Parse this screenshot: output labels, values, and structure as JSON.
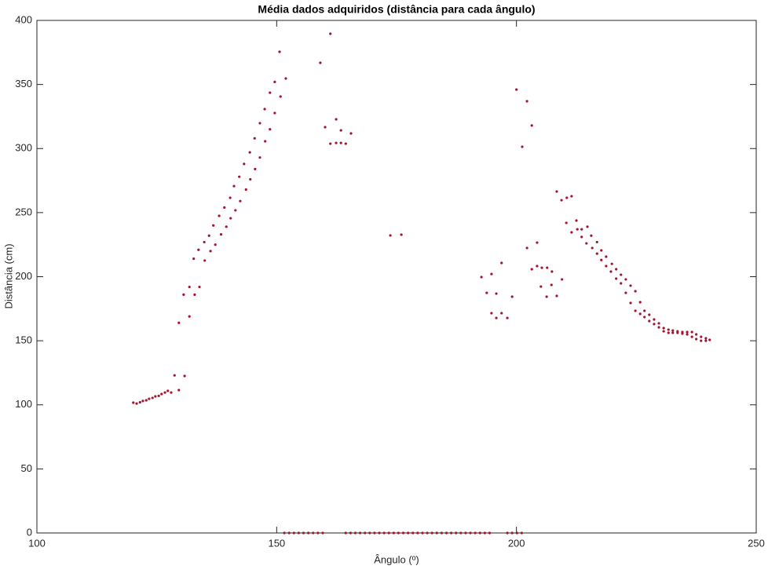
{
  "chart_data": {
    "type": "scatter",
    "title": "Média dados adquiridos (distância para cada ângulo)",
    "x_label": "Ângulo (º)",
    "y_label": "Distância (cm)",
    "color": "#a2142f",
    "xlim": [
      100,
      250
    ],
    "xticks": [
      100,
      150,
      200,
      250
    ],
    "ylim": [
      0,
      400
    ],
    "yticks": [
      0,
      50,
      100,
      150,
      200,
      250,
      300,
      350,
      400
    ],
    "x": [
      120.1,
      120.8,
      121.5,
      122.1,
      122.8,
      123.4,
      124.1,
      124.7,
      125.4,
      126.0,
      126.7,
      127.3,
      128.0,
      128.7,
      129.6,
      129.6,
      130.8,
      130.6,
      131.8,
      131.8,
      132.7,
      132.9,
      133.7,
      133.9,
      134.9,
      135.0,
      135.9,
      136.2,
      136.8,
      137.2,
      138.0,
      138.4,
      139.1,
      139.5,
      140.3,
      140.4,
      141.1,
      141.4,
      142.2,
      142.4,
      143.2,
      143.6,
      144.4,
      144.5,
      145.4,
      145.5,
      146.5,
      146.5,
      147.5,
      147.6,
      148.6,
      148.6,
      149.6,
      149.6,
      150.6,
      150.8,
      151.9,
      159.1,
      160.1,
      161.2,
      161.2,
      162.4,
      162.4,
      163.4,
      163.4,
      164.4,
      165.5,
      173.7,
      176.0,
      192.7,
      193.8,
      194.8,
      194.8,
      195.8,
      195.8,
      196.9,
      196.9,
      198.1,
      199.1,
      200.0,
      201.2,
      202.2,
      202.2,
      203.2,
      203.2,
      204.3,
      204.3,
      205.1,
      205.3,
      206.3,
      206.4,
      207.3,
      207.4,
      208.4,
      208.4,
      209.4,
      209.5,
      210.4,
      210.5,
      211.5,
      211.5,
      212.5,
      212.7,
      213.6,
      213.6,
      214.6,
      214.8,
      215.6,
      215.8,
      216.8,
      216.8,
      217.7,
      217.7,
      218.7,
      218.7,
      219.7,
      219.9,
      220.8,
      220.8,
      221.8,
      221.8,
      222.8,
      222.8,
      223.8,
      223.8,
      224.8,
      224.8,
      225.8,
      225.8,
      226.7,
      226.7,
      227.7,
      227.7,
      228.7,
      228.7,
      229.7,
      229.7,
      230.7,
      230.7,
      231.7,
      231.7,
      232.6,
      232.6,
      233.6,
      233.6,
      234.6,
      234.6,
      235.6,
      235.6,
      236.6,
      236.6,
      237.5,
      237.5,
      238.5,
      238.5,
      239.5,
      239.5,
      240.3,
      151.6,
      152.6,
      153.6,
      154.6,
      155.6,
      156.6,
      157.6,
      158.6,
      159.6,
      164.4,
      165.4,
      166.4,
      167.4,
      168.4,
      169.4,
      170.4,
      171.4,
      172.4,
      173.4,
      174.4,
      175.4,
      176.4,
      177.4,
      178.4,
      179.4,
      180.4,
      181.4,
      182.4,
      183.4,
      184.4,
      185.4,
      186.4,
      187.4,
      188.4,
      189.4,
      190.4,
      191.4,
      192.4,
      193.4,
      194.4,
      198.1,
      199.1,
      200.1,
      201.1
    ],
    "values": [
      101.7,
      101,
      102,
      103,
      103.5,
      104.7,
      105.4,
      106.6,
      107,
      108.4,
      109.6,
      110.9,
      109.6,
      123,
      111.5,
      164,
      122.5,
      186,
      192,
      169,
      214,
      186,
      221,
      192,
      227,
      212.6,
      232,
      220,
      240,
      225,
      247.5,
      233,
      254,
      239,
      261.6,
      245.6,
      270.7,
      251.8,
      278,
      259,
      288,
      268,
      297,
      276,
      308,
      284,
      319.8,
      293,
      330.8,
      305.7,
      343.6,
      315,
      352,
      327.7,
      375.5,
      340.6,
      354.7,
      366.9,
      316.7,
      389.6,
      303.8,
      322.8,
      304.4,
      304.4,
      314.2,
      303.8,
      311.8,
      232.2,
      232.8,
      199.7,
      187.4,
      202.1,
      171.5,
      186.8,
      167.8,
      210.7,
      171.5,
      167.8,
      184.4,
      346,
      301.4,
      336.9,
      222.4,
      318,
      205.8,
      226.6,
      208.3,
      192.3,
      207,
      184.4,
      207,
      193.6,
      204,
      266.5,
      185,
      259.7,
      197.9,
      242,
      261.6,
      262.8,
      234.6,
      243.8,
      237,
      231,
      237,
      226,
      239,
      232,
      222.4,
      218,
      227,
      213,
      220.5,
      208.3,
      215.6,
      204,
      210,
      198.5,
      205.8,
      194.8,
      201.5,
      187.4,
      197.9,
      179.5,
      193,
      173.4,
      188.7,
      171,
      180.1,
      168.5,
      173.4,
      165.4,
      170.3,
      163,
      166.6,
      160.5,
      163.6,
      157.4,
      159.9,
      156.2,
      158.7,
      156.2,
      158,
      156.2,
      157.4,
      155.6,
      156.8,
      155,
      156.8,
      153.1,
      156.8,
      151.3,
      155,
      150,
      153.1,
      150,
      151.9,
      150.7,
      0,
      0,
      0,
      0,
      0,
      0,
      0,
      0,
      0,
      0,
      0,
      0,
      0,
      0,
      0,
      0,
      0,
      0,
      0,
      0,
      0,
      0,
      0,
      0,
      0,
      0,
      0,
      0,
      0,
      0,
      0,
      0,
      0,
      0,
      0,
      0,
      0,
      0,
      0,
      0,
      0,
      0,
      0,
      0
    ]
  }
}
